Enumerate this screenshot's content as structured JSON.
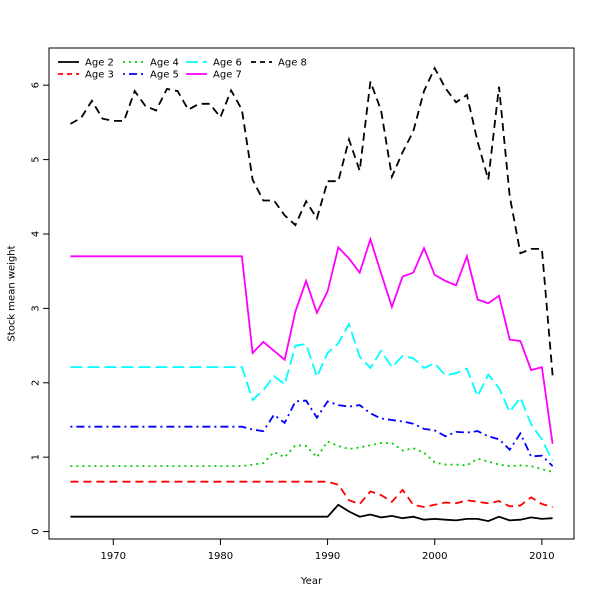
{
  "chart_data": {
    "type": "line",
    "title": "",
    "xlabel": "Year",
    "ylabel": "Stock mean weight",
    "xlim": [
      1964,
      2013
    ],
    "ylim": [
      -0.1,
      6.5
    ],
    "x_ticks": [
      1970,
      1980,
      1990,
      2000,
      2010
    ],
    "y_ticks": [
      0,
      1,
      2,
      3,
      4,
      5,
      6
    ],
    "legend_position": "top-left",
    "grid": false,
    "x": [
      1966,
      1967,
      1968,
      1969,
      1970,
      1971,
      1972,
      1973,
      1974,
      1975,
      1976,
      1977,
      1978,
      1979,
      1980,
      1981,
      1982,
      1983,
      1984,
      1985,
      1986,
      1987,
      1988,
      1989,
      1990,
      1991,
      1992,
      1993,
      1994,
      1995,
      1996,
      1997,
      1998,
      1999,
      2000,
      2001,
      2002,
      2003,
      2004,
      2005,
      2006,
      2007,
      2008,
      2009,
      2010,
      2011
    ],
    "series": [
      {
        "name": "Age 2",
        "color": "#000000",
        "dash": "solid",
        "values": [
          0.2,
          0.2,
          0.2,
          0.2,
          0.2,
          0.2,
          0.2,
          0.2,
          0.2,
          0.2,
          0.2,
          0.2,
          0.2,
          0.2,
          0.2,
          0.2,
          0.2,
          0.2,
          0.2,
          0.2,
          0.2,
          0.2,
          0.2,
          0.2,
          0.2,
          0.36,
          0.27,
          0.2,
          0.23,
          0.19,
          0.21,
          0.18,
          0.2,
          0.16,
          0.17,
          0.16,
          0.15,
          0.17,
          0.17,
          0.14,
          0.2,
          0.15,
          0.16,
          0.19,
          0.17,
          0.18
        ]
      },
      {
        "name": "Age 3",
        "color": "#ff0000",
        "dash": "dashed",
        "values": [
          0.67,
          0.67,
          0.67,
          0.67,
          0.67,
          0.67,
          0.67,
          0.67,
          0.67,
          0.67,
          0.67,
          0.67,
          0.67,
          0.67,
          0.67,
          0.67,
          0.67,
          0.67,
          0.67,
          0.67,
          0.67,
          0.67,
          0.67,
          0.67,
          0.67,
          0.63,
          0.42,
          0.37,
          0.54,
          0.49,
          0.4,
          0.56,
          0.36,
          0.33,
          0.36,
          0.39,
          0.38,
          0.42,
          0.4,
          0.38,
          0.41,
          0.34,
          0.35,
          0.46,
          0.37,
          0.33
        ]
      },
      {
        "name": "Age 4",
        "color": "#00cd00",
        "dash": "dotted",
        "values": [
          0.88,
          0.88,
          0.88,
          0.88,
          0.88,
          0.88,
          0.88,
          0.88,
          0.88,
          0.88,
          0.88,
          0.88,
          0.88,
          0.88,
          0.88,
          0.88,
          0.88,
          0.9,
          0.92,
          1.07,
          1.0,
          1.16,
          1.15,
          1.0,
          1.21,
          1.15,
          1.11,
          1.13,
          1.16,
          1.19,
          1.19,
          1.09,
          1.12,
          1.06,
          0.93,
          0.9,
          0.9,
          0.89,
          0.98,
          0.94,
          0.9,
          0.88,
          0.89,
          0.88,
          0.84,
          0.8
        ]
      },
      {
        "name": "Age 5",
        "color": "#0000ff",
        "dash": "dashdot",
        "values": [
          1.41,
          1.41,
          1.41,
          1.41,
          1.41,
          1.41,
          1.41,
          1.41,
          1.41,
          1.41,
          1.41,
          1.41,
          1.41,
          1.41,
          1.41,
          1.41,
          1.41,
          1.37,
          1.35,
          1.57,
          1.46,
          1.75,
          1.76,
          1.53,
          1.75,
          1.7,
          1.68,
          1.7,
          1.59,
          1.52,
          1.5,
          1.48,
          1.45,
          1.38,
          1.36,
          1.28,
          1.34,
          1.33,
          1.35,
          1.28,
          1.24,
          1.1,
          1.32,
          1.01,
          1.02,
          0.88
        ]
      },
      {
        "name": "Age 6",
        "color": "#00ffff",
        "dash": "longdash",
        "values": [
          2.21,
          2.21,
          2.21,
          2.21,
          2.21,
          2.21,
          2.21,
          2.21,
          2.21,
          2.21,
          2.21,
          2.21,
          2.21,
          2.21,
          2.21,
          2.21,
          2.21,
          1.77,
          1.9,
          2.09,
          1.98,
          2.5,
          2.52,
          2.08,
          2.4,
          2.53,
          2.79,
          2.35,
          2.2,
          2.43,
          2.21,
          2.36,
          2.33,
          2.2,
          2.26,
          2.1,
          2.13,
          2.19,
          1.82,
          2.11,
          1.93,
          1.61,
          1.8,
          1.44,
          1.24,
          0.95
        ]
      },
      {
        "name": "Age 7",
        "color": "#ff00ff",
        "dash": "solid",
        "values": [
          3.7,
          3.7,
          3.7,
          3.7,
          3.7,
          3.7,
          3.7,
          3.7,
          3.7,
          3.7,
          3.7,
          3.7,
          3.7,
          3.7,
          3.7,
          3.7,
          3.7,
          2.4,
          2.55,
          2.43,
          2.31,
          2.96,
          3.37,
          2.94,
          3.23,
          3.82,
          3.67,
          3.48,
          3.93,
          3.47,
          3.02,
          3.43,
          3.48,
          3.81,
          3.45,
          3.37,
          3.31,
          3.7,
          3.12,
          3.07,
          3.17,
          2.58,
          2.56,
          2.17,
          2.21,
          1.18
        ]
      },
      {
        "name": "Age 8",
        "color": "#000000",
        "dash": "dashed",
        "values": [
          5.48,
          5.56,
          5.79,
          5.55,
          5.52,
          5.52,
          5.92,
          5.72,
          5.66,
          5.95,
          5.92,
          5.67,
          5.75,
          5.75,
          5.57,
          5.93,
          5.67,
          4.73,
          4.45,
          4.45,
          4.25,
          4.12,
          4.44,
          4.21,
          4.71,
          4.71,
          5.27,
          4.85,
          6.05,
          5.66,
          4.77,
          5.1,
          5.38,
          5.92,
          6.23,
          5.96,
          5.77,
          5.87,
          5.24,
          4.73,
          5.98,
          4.51,
          3.74,
          3.8,
          3.8,
          2.1
        ]
      }
    ]
  }
}
